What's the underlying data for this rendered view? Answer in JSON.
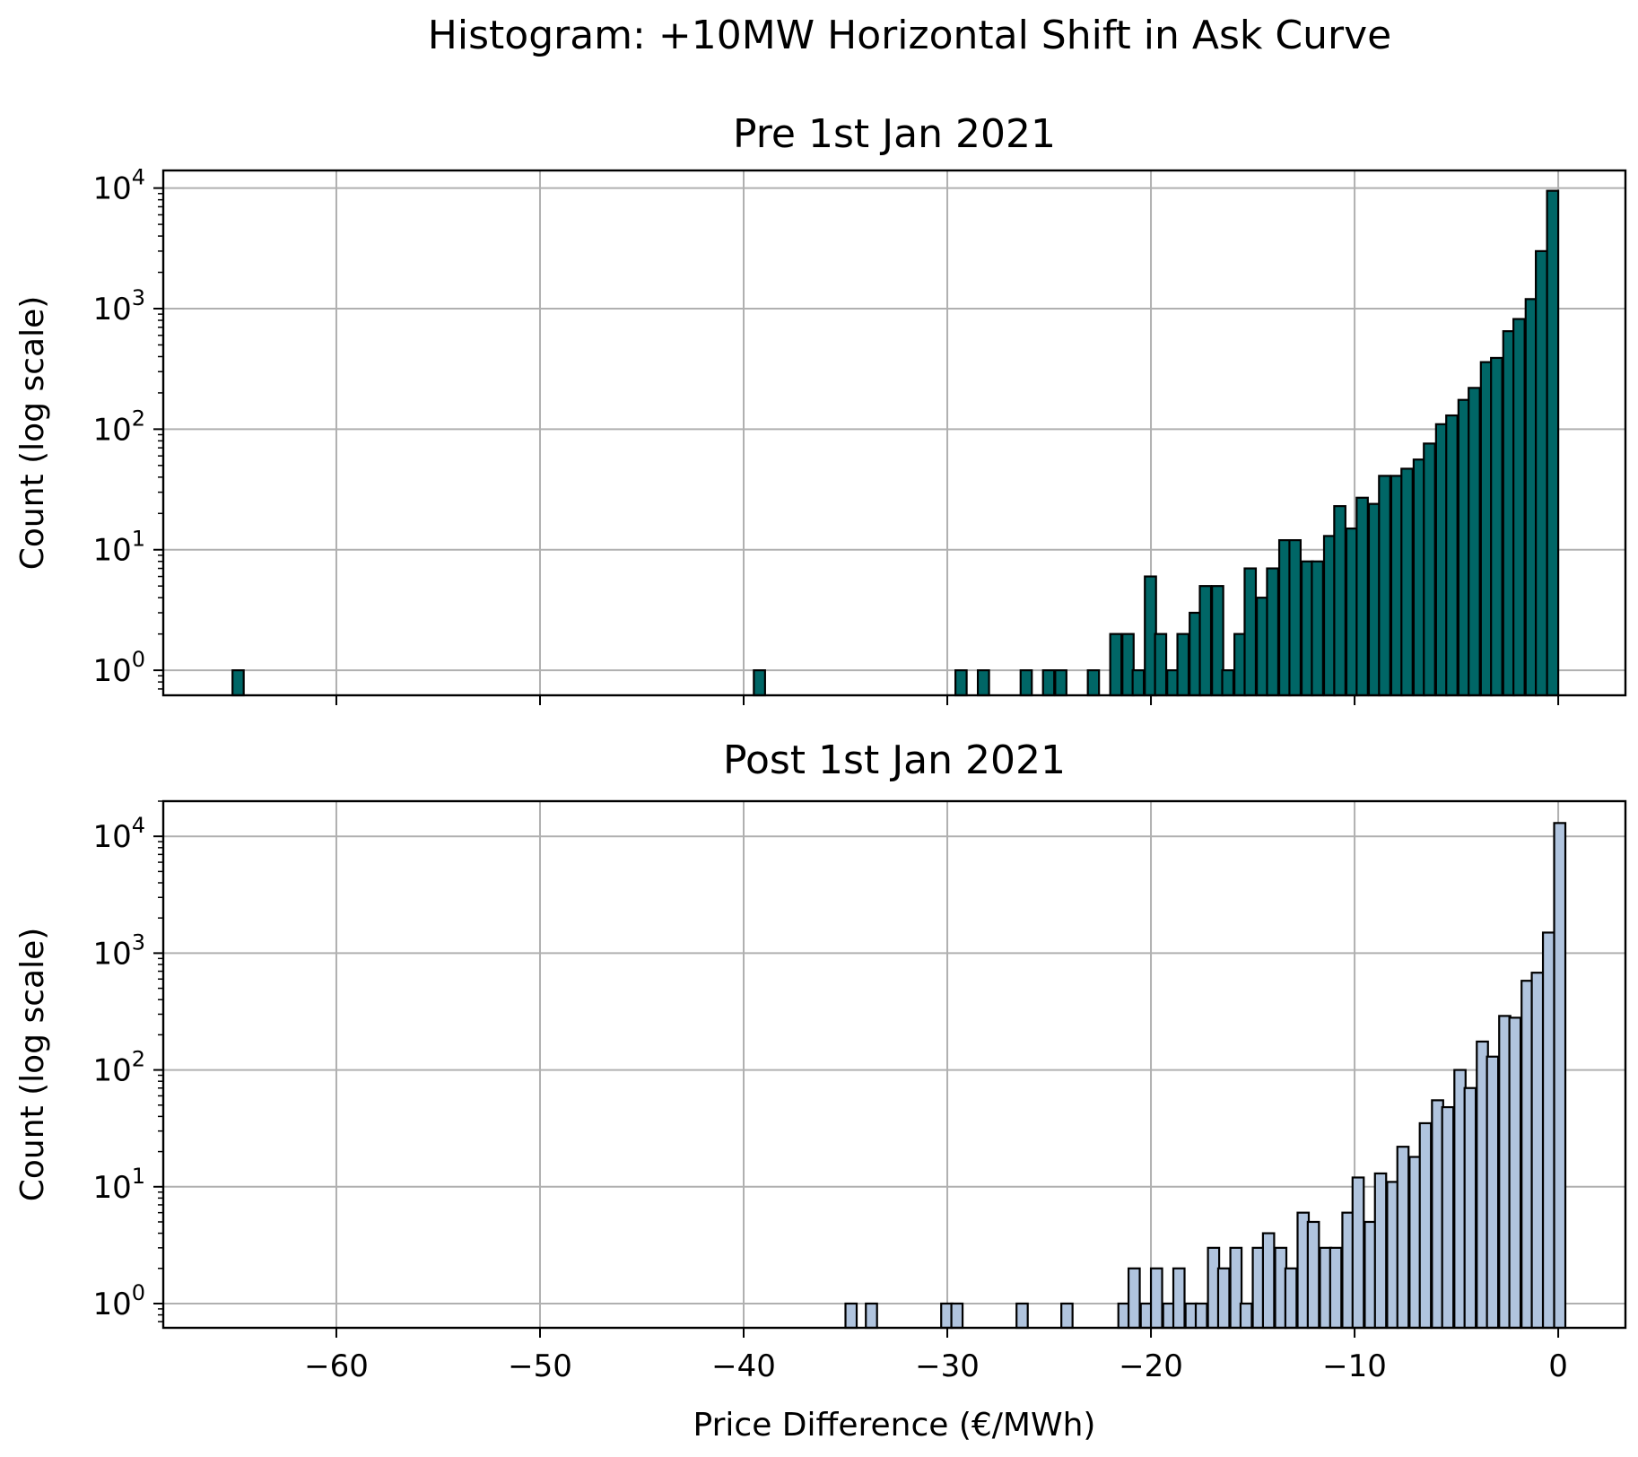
{
  "figure": {
    "suptitle": "Histogram: +10MW Horizontal Shift in Ask Curve",
    "colors": {
      "pre": "#006666",
      "post": "#b0c4de",
      "edge": "#000000",
      "grid": "#b0b0b0"
    }
  },
  "chart_data": [
    {
      "type": "bar",
      "title": "Pre 1st Jan 2021",
      "xlabel": "",
      "ylabel": "Count (log scale)",
      "yscale": "log",
      "xlim": [
        -68.5,
        3.3
      ],
      "ylim": [
        0.62,
        14000
      ],
      "grid": true,
      "xticks": [
        -60,
        -50,
        -40,
        -30,
        -20,
        -10,
        0
      ],
      "xtick_labels": [
        "",
        "",
        "",
        "",
        "",
        "",
        ""
      ],
      "yticks": [
        1,
        10,
        100,
        1000,
        10000
      ],
      "ytick_labels": [
        {
          "base": "10",
          "exp": "0"
        },
        {
          "base": "10",
          "exp": "1"
        },
        {
          "base": "10",
          "exp": "2"
        },
        {
          "base": "10",
          "exp": "3"
        },
        {
          "base": "10",
          "exp": "4"
        }
      ],
      "bin_width": 0.55,
      "bins_left": [
        -65.1,
        -39.5,
        -29.6,
        -28.5,
        -26.4,
        -25.3,
        -24.7,
        -23.1,
        -22.0,
        -21.4,
        -20.9,
        -20.3,
        -19.8,
        -19.2,
        -18.7,
        -18.1,
        -17.6,
        -17.0,
        -16.5,
        -15.9,
        -15.4,
        -14.8,
        -14.3,
        -13.7,
        -13.2,
        -12.6,
        -12.1,
        -11.5,
        -11.0,
        -10.4,
        -9.9,
        -9.3,
        -8.8,
        -8.2,
        -7.7,
        -7.1,
        -6.6,
        -6.0,
        -5.5,
        -4.9,
        -4.4,
        -3.8,
        -3.3,
        -2.7,
        -2.2,
        -1.6,
        -1.1,
        -0.55
      ],
      "counts": [
        1,
        1,
        1,
        1,
        1,
        1,
        1,
        1,
        2,
        2,
        1,
        6,
        2,
        1,
        2,
        3,
        5,
        5,
        1,
        2,
        7,
        4,
        7,
        12,
        12,
        8,
        8,
        13,
        23,
        15,
        27,
        24,
        41,
        41,
        47,
        56,
        76,
        110,
        130,
        175,
        220,
        360,
        390,
        650,
        820,
        1200,
        3000,
        9500
      ]
    },
    {
      "type": "bar",
      "title": "Post 1st Jan 2021",
      "xlabel": "Price Difference (€/MWh)",
      "ylabel": "Count (log scale)",
      "yscale": "log",
      "xlim": [
        -68.5,
        3.3
      ],
      "ylim": [
        0.62,
        20000
      ],
      "grid": true,
      "xticks": [
        -60,
        -50,
        -40,
        -30,
        -20,
        -10,
        0
      ],
      "xtick_labels": [
        "−60",
        "−50",
        "−40",
        "−30",
        "−20",
        "−10",
        "0"
      ],
      "yticks": [
        1,
        10,
        100,
        1000,
        10000
      ],
      "ytick_labels": [
        {
          "base": "10",
          "exp": "0"
        },
        {
          "base": "10",
          "exp": "1"
        },
        {
          "base": "10",
          "exp": "2"
        },
        {
          "base": "10",
          "exp": "3"
        },
        {
          "base": "10",
          "exp": "4"
        }
      ],
      "bin_width": 0.55,
      "bins_left": [
        -35.0,
        -34.0,
        -30.3,
        -29.8,
        -26.6,
        -24.4,
        -21.6,
        -21.1,
        -20.5,
        -20.0,
        -19.4,
        -18.9,
        -18.3,
        -17.8,
        -17.2,
        -16.7,
        -16.1,
        -15.6,
        -15.0,
        -14.5,
        -13.9,
        -13.4,
        -12.8,
        -12.3,
        -11.7,
        -11.2,
        -10.6,
        -10.1,
        -9.5,
        -9.0,
        -8.4,
        -7.9,
        -7.3,
        -6.8,
        -6.2,
        -5.7,
        -5.1,
        -4.6,
        -4.0,
        -3.5,
        -2.9,
        -2.4,
        -1.8,
        -1.3,
        -0.75,
        -0.2
      ],
      "counts": [
        1,
        1,
        1,
        1,
        1,
        1,
        1,
        2,
        1,
        2,
        1,
        2,
        1,
        1,
        3,
        2,
        3,
        1,
        3,
        4,
        3,
        2,
        6,
        5,
        3,
        3,
        6,
        12,
        5,
        13,
        11,
        22,
        18,
        35,
        55,
        48,
        100,
        70,
        175,
        130,
        290,
        280,
        580,
        680,
        1500,
        13000
      ]
    }
  ]
}
